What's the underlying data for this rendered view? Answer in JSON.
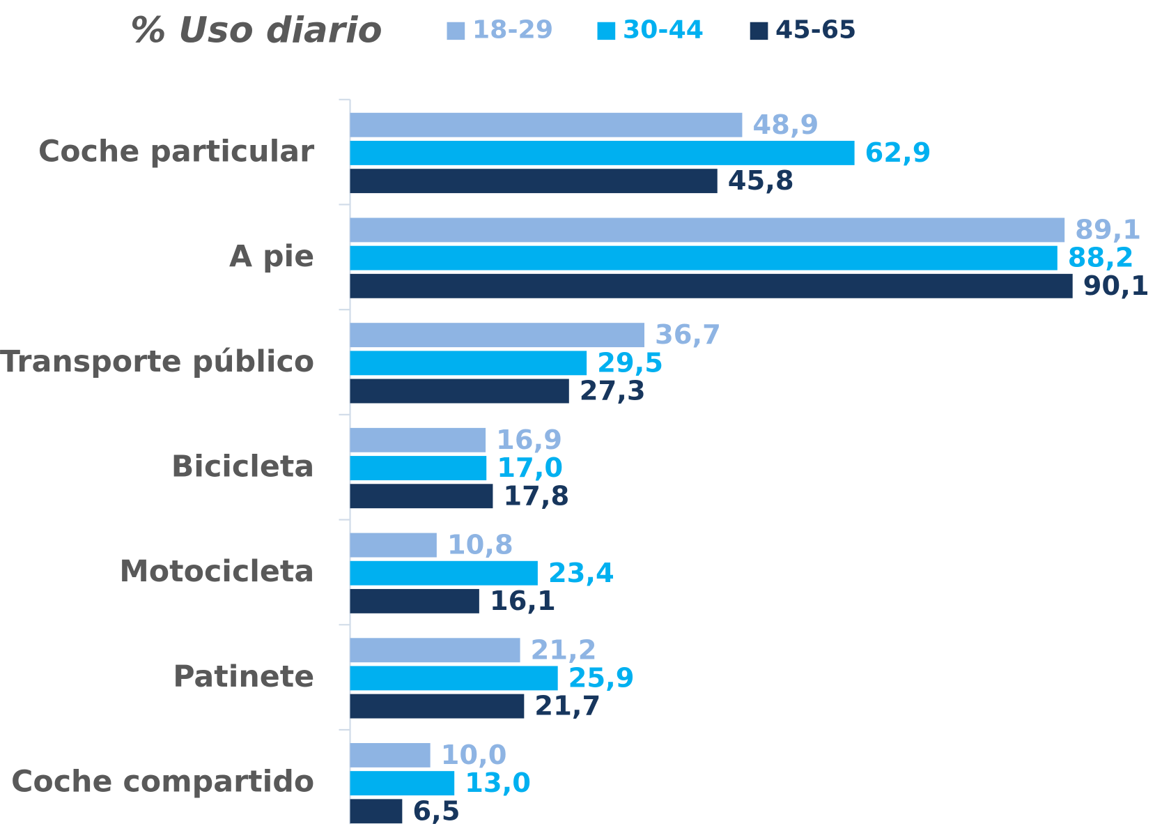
{
  "chart_data": {
    "type": "bar",
    "orientation": "horizontal",
    "title": "% Uso diario",
    "categories": [
      "Coche particular",
      "A pie",
      "Transporte público",
      "Bicicleta",
      "Motocicleta",
      "Patinete",
      "Coche compartido"
    ],
    "series": [
      {
        "name": "18-29",
        "color": "#8eb4e3",
        "values": [
          48.9,
          89.1,
          36.7,
          16.9,
          10.8,
          21.2,
          10.0
        ],
        "value_labels": [
          "48,9",
          "89,1",
          "36,7",
          "16,9",
          "10,8",
          "21,2",
          "10,0"
        ]
      },
      {
        "name": "30-44",
        "color": "#00b0f0",
        "values": [
          62.9,
          88.2,
          29.5,
          17.0,
          23.4,
          25.9,
          13.0
        ],
        "value_labels": [
          "62,9",
          "88,2",
          "29,5",
          "17,0",
          "23,4",
          "25,9",
          "13,0"
        ]
      },
      {
        "name": "45-65",
        "color": "#17365d",
        "values": [
          45.8,
          90.1,
          27.3,
          17.8,
          16.1,
          21.7,
          6.5
        ],
        "value_labels": [
          "45,8",
          "90,1",
          "27,3",
          "17,8",
          "16,1",
          "21,7",
          "6,5"
        ]
      }
    ],
    "xlim": [
      0,
      100
    ],
    "legend": "top"
  }
}
